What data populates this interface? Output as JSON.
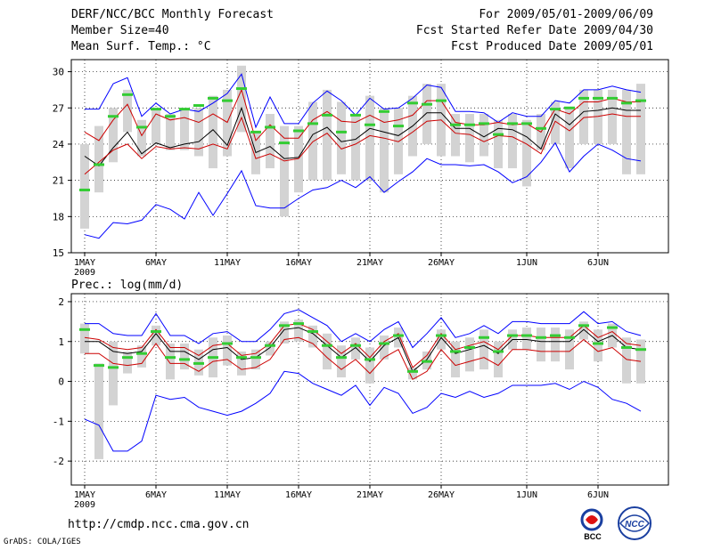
{
  "header": {
    "title": "DERF/NCC/BCC Monthly Forecast",
    "member_size": "Member Size=40",
    "variable": "Mean Surf. Temp.: °C",
    "period": "For 2009/05/01-2009/06/09",
    "started": "Fcst Started Refer Date 2009/04/30",
    "produced": "Fcst Produced Date 2009/05/01"
  },
  "footer": {
    "url": "http://cmdp.ncc.cma.gov.cn",
    "grads": "GrADS: COLA/IGES",
    "logo_bcc": "BCC",
    "logo_ncc": "NCC"
  },
  "colors": {
    "max_line": "#0000ff",
    "min_line": "#0000ff",
    "mean_line": "#000000",
    "spread_line": "#cc0000",
    "box": "#d3d3d3",
    "median": "#33cc33",
    "grid": "#000000"
  },
  "chart_data": [
    {
      "type": "line",
      "title": "",
      "ylabel": "",
      "ylim": [
        15,
        31
      ],
      "yticks": [
        15,
        18,
        21,
        24,
        27,
        30
      ],
      "x_days": 40,
      "xticks": [
        {
          "day": 1,
          "label": "1MAY"
        },
        {
          "day": 6,
          "label": "6MAY"
        },
        {
          "day": 11,
          "label": "11MAY"
        },
        {
          "day": 16,
          "label": "16MAY"
        },
        {
          "day": 21,
          "label": "21MAY"
        },
        {
          "day": 26,
          "label": "26MAY"
        },
        {
          "day": 32,
          "label": "1JUN"
        },
        {
          "day": 37,
          "label": "6JUN"
        }
      ],
      "year_label": "2009",
      "series": [
        {
          "name": "max",
          "values": [
            26.9,
            26.9,
            29.0,
            29.5,
            26.3,
            27.4,
            26.5,
            26.9,
            26.7,
            27.4,
            28.2,
            29.8,
            25.4,
            27.9,
            25.7,
            25.7,
            27.4,
            28.4,
            27.6,
            26.4,
            27.8,
            26.9,
            27.0,
            27.8,
            28.9,
            28.7,
            26.7,
            26.7,
            26.6,
            25.8,
            26.6,
            26.3,
            26.3,
            27.6,
            27.4,
            28.5,
            28.5,
            28.8,
            28.5,
            28.3
          ]
        },
        {
          "name": "upper",
          "values": [
            25.0,
            24.3,
            26.0,
            27.3,
            24.7,
            26.5,
            26.0,
            26.2,
            25.8,
            26.5,
            25.8,
            28.5,
            24.3,
            25.6,
            24.5,
            24.5,
            26.0,
            26.7,
            25.9,
            25.8,
            26.4,
            25.8,
            26.0,
            26.4,
            27.6,
            27.6,
            25.8,
            25.6,
            25.6,
            25.8,
            25.6,
            25.7,
            25.0,
            26.9,
            26.5,
            27.5,
            27.5,
            27.8,
            27.5,
            27.5
          ]
        },
        {
          "name": "mean",
          "values": [
            23.0,
            22.2,
            23.7,
            25.0,
            23.2,
            24.1,
            23.7,
            24.0,
            24.2,
            25.2,
            23.9,
            27.0,
            23.3,
            23.8,
            22.8,
            22.9,
            24.8,
            25.4,
            24.2,
            24.4,
            25.3,
            25.0,
            24.7,
            25.5,
            26.6,
            26.6,
            25.3,
            25.3,
            24.6,
            25.3,
            25.2,
            24.6,
            23.6,
            26.5,
            25.6,
            26.7,
            26.8,
            27.0,
            26.8,
            26.8
          ]
        },
        {
          "name": "lower",
          "values": [
            21.5,
            22.5,
            23.5,
            24.0,
            22.8,
            23.8,
            23.6,
            23.7,
            23.6,
            24.0,
            23.6,
            26.2,
            22.8,
            23.2,
            22.6,
            22.8,
            24.2,
            24.9,
            23.6,
            24.0,
            24.7,
            24.5,
            24.2,
            25.0,
            25.9,
            26.0,
            24.9,
            24.8,
            24.2,
            24.7,
            24.6,
            24.0,
            23.2,
            25.9,
            25.1,
            26.2,
            26.3,
            26.5,
            26.3,
            26.3
          ]
        },
        {
          "name": "min",
          "values": [
            16.5,
            16.2,
            17.5,
            17.4,
            17.7,
            19.0,
            18.6,
            17.8,
            20.0,
            18.1,
            19.9,
            21.8,
            18.9,
            18.7,
            18.7,
            19.5,
            20.2,
            20.4,
            21.0,
            20.4,
            21.3,
            20.0,
            20.9,
            21.7,
            22.8,
            22.3,
            22.3,
            22.2,
            22.3,
            21.7,
            20.8,
            21.3,
            22.5,
            24.1,
            21.7,
            23.0,
            24.0,
            23.5,
            22.8,
            22.6
          ]
        }
      ],
      "boxes": {
        "low": [
          17.0,
          20.0,
          22.5,
          25.0,
          23.0,
          24.0,
          23.5,
          23.5,
          23.0,
          22.0,
          23.0,
          25.0,
          21.5,
          22.0,
          18.0,
          20.0,
          21.0,
          21.0,
          21.5,
          21.0,
          21.0,
          20.0,
          21.5,
          23.0,
          24.0,
          23.0,
          23.0,
          22.5,
          23.0,
          22.0,
          22.0,
          20.5,
          23.5,
          24.0,
          22.0,
          24.0,
          24.0,
          24.0,
          21.5,
          21.5
        ],
        "high": [
          24.0,
          25.5,
          27.0,
          28.5,
          26.0,
          27.0,
          26.5,
          27.0,
          27.0,
          28.0,
          28.5,
          30.5,
          25.0,
          26.5,
          25.5,
          25.5,
          27.5,
          28.5,
          27.5,
          26.5,
          28.0,
          27.0,
          27.0,
          28.0,
          29.0,
          29.0,
          26.5,
          26.5,
          26.5,
          26.0,
          26.5,
          26.0,
          26.5,
          27.5,
          27.0,
          28.5,
          28.5,
          28.5,
          28.5,
          29.0
        ]
      },
      "median": [
        20.2,
        22.3,
        26.3,
        28.1,
        25.4,
        26.9,
        26.3,
        26.9,
        27.2,
        27.8,
        27.6,
        28.6,
        25.0,
        25.4,
        24.1,
        25.1,
        25.7,
        26.4,
        25.0,
        26.4,
        25.6,
        26.7,
        25.5,
        27.4,
        27.3,
        27.6,
        25.6,
        25.6,
        25.7,
        24.8,
        25.7,
        25.7,
        25.3,
        26.9,
        27.0,
        27.8,
        27.8,
        27.8,
        27.4,
        27.6
      ]
    },
    {
      "type": "line",
      "title": "Prec.: log(mm/d)",
      "ylabel": "",
      "ylim": [
        -2.6,
        2.2
      ],
      "yticks": [
        -2,
        -1,
        0,
        1,
        2
      ],
      "x_days": 40,
      "xticks": [
        {
          "day": 1,
          "label": "1MAY"
        },
        {
          "day": 6,
          "label": "6MAY"
        },
        {
          "day": 11,
          "label": "11MAY"
        },
        {
          "day": 16,
          "label": "16MAY"
        },
        {
          "day": 21,
          "label": "21MAY"
        },
        {
          "day": 26,
          "label": "26MAY"
        },
        {
          "day": 32,
          "label": "1JUN"
        },
        {
          "day": 37,
          "label": "6JUN"
        }
      ],
      "year_label": "2009",
      "series": [
        {
          "name": "max",
          "values": [
            1.45,
            1.45,
            1.2,
            1.15,
            1.15,
            1.7,
            1.15,
            1.15,
            0.95,
            1.2,
            1.25,
            1.0,
            1.0,
            1.3,
            1.7,
            1.8,
            1.6,
            1.4,
            1.0,
            1.2,
            1.0,
            1.3,
            1.5,
            0.85,
            1.2,
            1.6,
            1.1,
            1.2,
            1.4,
            1.2,
            1.5,
            1.5,
            1.45,
            1.45,
            1.45,
            1.75,
            1.45,
            1.5,
            1.25,
            1.15
          ]
        },
        {
          "name": "upper",
          "values": [
            1.1,
            1.05,
            0.85,
            0.8,
            0.85,
            1.3,
            0.85,
            0.85,
            0.65,
            0.9,
            0.95,
            0.65,
            0.7,
            0.95,
            1.4,
            1.45,
            1.3,
            1.0,
            0.7,
            0.95,
            0.6,
            1.0,
            1.2,
            0.35,
            0.65,
            1.2,
            0.8,
            0.9,
            1.0,
            0.8,
            1.15,
            1.15,
            1.1,
            1.1,
            1.1,
            1.4,
            1.1,
            1.25,
            0.95,
            0.9
          ]
        },
        {
          "name": "mean",
          "values": [
            1.0,
            1.0,
            0.75,
            0.7,
            0.75,
            1.2,
            0.75,
            0.75,
            0.55,
            0.8,
            0.85,
            0.55,
            0.6,
            0.85,
            1.3,
            1.35,
            1.2,
            0.9,
            0.6,
            0.85,
            0.5,
            0.9,
            1.1,
            0.25,
            0.55,
            1.1,
            0.7,
            0.8,
            0.9,
            0.7,
            1.05,
            1.05,
            1.0,
            1.0,
            1.0,
            1.3,
            1.0,
            1.15,
            0.85,
            0.8
          ]
        },
        {
          "name": "lower",
          "values": [
            0.7,
            0.7,
            0.45,
            0.4,
            0.45,
            0.95,
            0.45,
            0.45,
            0.25,
            0.5,
            0.55,
            0.3,
            0.35,
            0.55,
            1.05,
            1.1,
            0.95,
            0.6,
            0.3,
            0.55,
            0.2,
            0.6,
            0.8,
            0.05,
            0.25,
            0.8,
            0.4,
            0.5,
            0.6,
            0.4,
            0.8,
            0.8,
            0.75,
            0.75,
            0.75,
            1.05,
            0.75,
            0.85,
            0.55,
            0.5
          ]
        },
        {
          "name": "min",
          "values": [
            -0.95,
            -1.1,
            -1.75,
            -1.75,
            -1.5,
            -0.35,
            -0.45,
            -0.4,
            -0.65,
            -0.75,
            -0.85,
            -0.75,
            -0.55,
            -0.3,
            0.25,
            0.2,
            -0.05,
            -0.2,
            -0.35,
            -0.1,
            -0.6,
            -0.15,
            -0.3,
            -0.8,
            -0.65,
            -0.3,
            -0.4,
            -0.25,
            -0.4,
            -0.3,
            -0.1,
            -0.1,
            -0.1,
            -0.05,
            -0.2,
            0.0,
            -0.15,
            -0.45,
            -0.55,
            -0.75
          ]
        }
      ],
      "boxes": {
        "low": [
          0.7,
          -1.95,
          -0.6,
          0.2,
          0.35,
          0.9,
          0.05,
          0.3,
          0.15,
          0.1,
          0.4,
          0.15,
          0.3,
          0.65,
          0.95,
          1.0,
          0.85,
          0.3,
          0.1,
          0.55,
          -0.05,
          0.55,
          0.85,
          0.05,
          0.3,
          0.8,
          0.1,
          0.25,
          0.3,
          0.1,
          0.8,
          0.8,
          0.5,
          0.5,
          0.3,
          1.05,
          0.5,
          0.85,
          -0.05,
          -0.05
        ],
        "high": [
          1.45,
          0.45,
          1.0,
          0.75,
          0.9,
          1.4,
          0.95,
          0.95,
          0.8,
          1.1,
          1.15,
          0.75,
          0.8,
          1.0,
          1.5,
          1.55,
          1.4,
          1.2,
          0.9,
          1.1,
          0.85,
          1.15,
          1.35,
          0.35,
          0.75,
          1.3,
          1.0,
          1.1,
          1.3,
          1.0,
          1.3,
          1.35,
          1.35,
          1.35,
          1.3,
          1.5,
          1.3,
          1.45,
          1.1,
          1.05
        ]
      },
      "median": [
        1.3,
        0.4,
        0.35,
        0.6,
        0.7,
        1.25,
        0.6,
        0.55,
        0.45,
        0.6,
        0.95,
        0.6,
        0.6,
        0.9,
        1.4,
        1.45,
        1.25,
        0.9,
        0.6,
        0.9,
        0.55,
        0.95,
        1.15,
        0.25,
        0.5,
        1.15,
        0.75,
        0.85,
        1.1,
        0.75,
        1.15,
        1.15,
        1.1,
        1.15,
        1.1,
        1.4,
        0.95,
        1.35,
        0.85,
        0.8
      ]
    }
  ]
}
